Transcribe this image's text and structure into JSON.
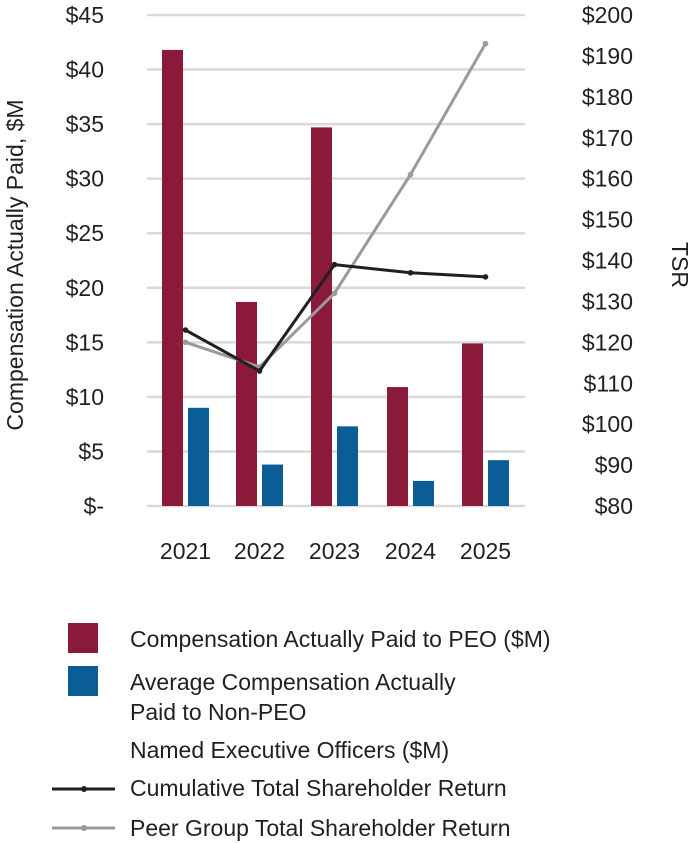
{
  "chart_data": {
    "type": "bar",
    "categories": [
      "2021",
      "2022",
      "2023",
      "2024",
      "2025"
    ],
    "series": [
      {
        "name": "Compensation Actually Paid to PEO ($M)",
        "kind": "bar",
        "axis": "left",
        "color": "#8b1a3a",
        "values": [
          41.8,
          18.7,
          34.7,
          10.9,
          14.9
        ]
      },
      {
        "name": "Average Compensation Actually Paid to Non-PEO Named Executive Officers ($M)",
        "kind": "bar",
        "axis": "left",
        "color": "#0b5d95",
        "values": [
          9.0,
          3.8,
          7.3,
          2.3,
          4.2
        ]
      },
      {
        "name": "Cumulative Total Shareholder Return",
        "kind": "line",
        "axis": "right",
        "color": "#231f20",
        "values": [
          123,
          113,
          139,
          137,
          136
        ]
      },
      {
        "name": "Peer Group Total Shareholder Return",
        "kind": "line",
        "axis": "right",
        "color": "#9a9a9a",
        "values": [
          120,
          114,
          132,
          161,
          193
        ]
      }
    ],
    "ylabel": "Compensation Actually Paid, $M",
    "ylabel_right": "TSR",
    "ylim": [
      0,
      45
    ],
    "ylim_right": [
      80,
      200
    ],
    "yticks": [
      "$-",
      "$5",
      "$10",
      "$15",
      "$20",
      "$25",
      "$30",
      "$35",
      "$40",
      "$45"
    ],
    "yticks_right": [
      "$80",
      "$90",
      "$100",
      "$110",
      "$120",
      "$130",
      "$140",
      "$150",
      "$160",
      "$170",
      "$180",
      "$190",
      "$200"
    ],
    "grid": true,
    "legend_position": "bottom"
  },
  "legend": {
    "peo_label": "Compensation Actually Paid to PEO ($M)",
    "neo_label_line1": "Average Compensation Actually",
    "neo_label_line2": "Paid to Non-PEO",
    "neo_label_line3": "Named Executive Officers ($M)",
    "tsr_label": "Cumulative Total Shareholder Return",
    "peer_label": "Peer Group Total Shareholder Return"
  },
  "colors": {
    "peo": "#8b1a3a",
    "neo": "#0b5d95",
    "tsr": "#231f20",
    "peer": "#9a9a9a",
    "grid": "#d9d9d9"
  }
}
